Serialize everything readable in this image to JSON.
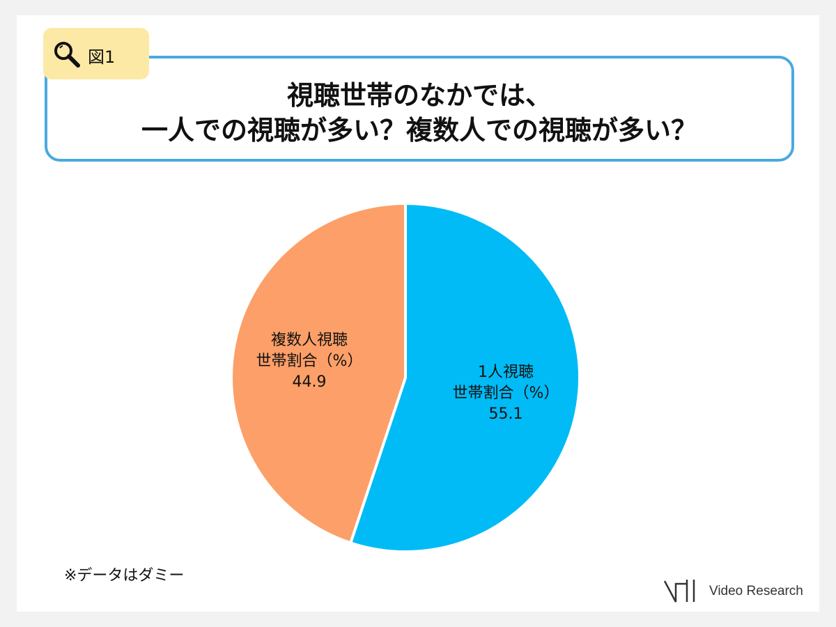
{
  "figure_tag": {
    "label": "図1",
    "icon": "magnifier-icon"
  },
  "title": {
    "line1": "視聴世帯のなかでは、",
    "line2": "一人での視聴が多い？複数人での視聴が多い？"
  },
  "colors": {
    "accent_border": "#4aa9df",
    "tag_bg": "#fce9a6",
    "single": "#00bbf5",
    "multi": "#fd9f68"
  },
  "chart_data": {
    "type": "pie",
    "slices": [
      {
        "name": "1人視聴",
        "label_line1": "1人視聴",
        "label_line2": "世帯割合（%）",
        "value": 55.1,
        "value_label": "55.1",
        "color": "#00bbf5"
      },
      {
        "name": "複数人視聴",
        "label_line1": "複数人視聴",
        "label_line2": "世帯割合（%）",
        "value": 44.9,
        "value_label": "44.9",
        "color": "#fd9f68"
      }
    ],
    "start_angle": "12 o'clock",
    "direction": "clockwise"
  },
  "note": "※データはダミー",
  "logo": {
    "text": "Video Research"
  }
}
